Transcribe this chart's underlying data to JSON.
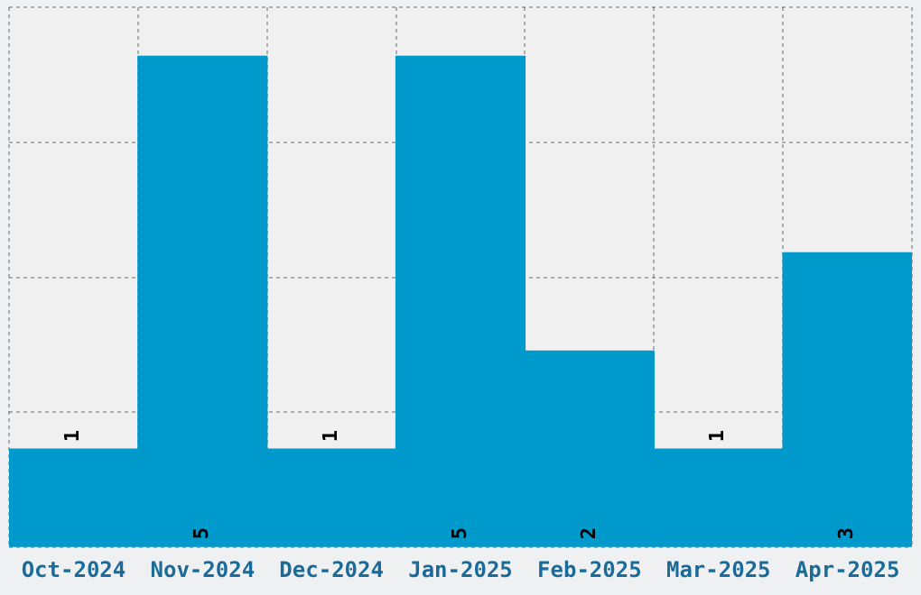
{
  "chart_data": {
    "type": "bar",
    "categories": [
      "Oct-2024",
      "Nov-2024",
      "Dec-2024",
      "Jan-2025",
      "Feb-2025",
      "Mar-2025",
      "Apr-2025"
    ],
    "values": [
      1,
      5,
      1,
      5,
      2,
      1,
      3
    ],
    "color": "#0099cc",
    "ylim": [
      0,
      5.5
    ],
    "yticks": [
      {
        "value": 0,
        "label": null
      },
      {
        "value": 1.375,
        "label": null
      },
      {
        "value": 2.75,
        "label": null
      },
      {
        "value": 4.125,
        "label": null
      },
      {
        "value": 5.5,
        "label": null
      }
    ],
    "grid": true,
    "tick_labels": "x",
    "data_labels": true
  }
}
